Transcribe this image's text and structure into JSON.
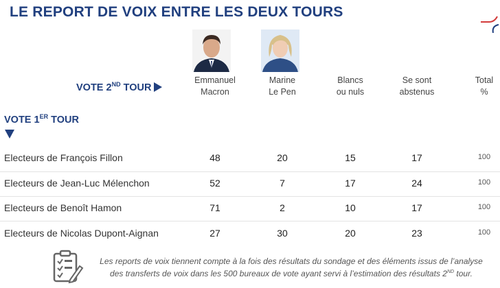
{
  "header": {
    "title": "LE REPORT DE VOIX ENTRE LES DEUX TOURS"
  },
  "axis": {
    "vote2_label": "VOTE 2",
    "vote2_sup": "ND",
    "vote2_suffix": " TOUR",
    "vote1_label": "VOTE 1",
    "vote1_sup": "ER",
    "vote1_suffix": " TOUR"
  },
  "columns": [
    {
      "line1": "Emmanuel",
      "line2": "Macron"
    },
    {
      "line1": "Marine",
      "line2": "Le Pen"
    },
    {
      "line1": "Blancs",
      "line2": "ou nuls"
    },
    {
      "line1": "Se sont",
      "line2": "abstenus"
    },
    {
      "line1": "Total",
      "line2": "%"
    }
  ],
  "rows": [
    {
      "label": "Electeurs de François Fillon",
      "macron": "48",
      "lepen": "20",
      "blancs": "15",
      "abstenus": "17",
      "total": "100"
    },
    {
      "label": "Electeurs de Jean-Luc Mélenchon",
      "macron": "52",
      "lepen": "7",
      "blancs": "17",
      "abstenus": "24",
      "total": "100"
    },
    {
      "label": "Electeurs de Benoît Hamon",
      "macron": "71",
      "lepen": "2",
      "blancs": "10",
      "abstenus": "17",
      "total": "100"
    },
    {
      "label": "Electeurs de Nicolas Dupont-Aignan",
      "macron": "27",
      "lepen": "30",
      "blancs": "20",
      "abstenus": "23",
      "total": "100"
    }
  ],
  "footnote": {
    "line1": "Les reports de voix tiennent compte à la fois des résultats du sondage et des éléments issus de l’analyse",
    "line2_pre": "des transferts de voix dans les 500 bureaux de vote ayant servi à l’estimation des résultats 2",
    "line2_sup": "ND",
    "line2_post": " tour."
  },
  "colors": {
    "accent": "#21407f",
    "rule": "#e3e3e3",
    "logo_red": "#d23a3a"
  },
  "icons": {
    "logo": "logo-mark-icon",
    "note": "clipboard-checklist-icon"
  }
}
